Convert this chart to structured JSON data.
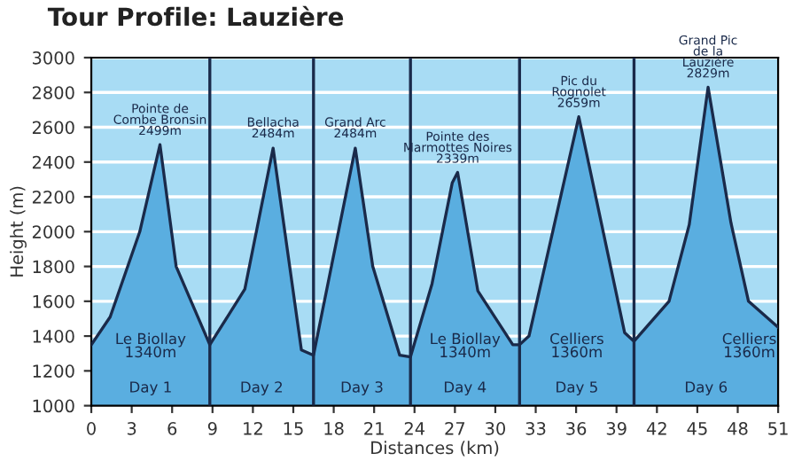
{
  "chart_data": {
    "type": "area",
    "title": "Tour Profile: Lauzière",
    "xlabel": "Distances (km)",
    "ylabel": "Height (m)",
    "x": [
      0,
      1.4,
      3.6,
      5.1,
      6.3,
      8.8,
      11.4,
      13.5,
      15.6,
      16.5,
      19.6,
      20.9,
      22.9,
      23.7,
      25.3,
      26.8,
      27.2,
      28.7,
      31.3,
      31.8,
      32.5,
      36.2,
      39.6,
      40.3,
      42.9,
      44.4,
      45.8,
      47.5,
      48.8,
      51
    ],
    "series": [
      {
        "color": "#5aaee0",
        "values": [
          1350,
          1510,
          2000,
          2500,
          1800,
          1350,
          1670,
          2480,
          1320,
          1290,
          2480,
          1800,
          1290,
          1280,
          1700,
          2280,
          2340,
          1660,
          1350,
          1350,
          1400,
          2660,
          1420,
          1370,
          1600,
          2040,
          2830,
          2050,
          1600,
          1450
        ]
      }
    ],
    "xlim": [
      0,
      51
    ],
    "ylim": [
      1000,
      3000
    ],
    "xticks": [
      0,
      3,
      6,
      9,
      12,
      15,
      18,
      21,
      24,
      27,
      30,
      33,
      36,
      39,
      42,
      45,
      48,
      51
    ],
    "yticks": [
      1000,
      1200,
      1400,
      1600,
      1800,
      2000,
      2200,
      2400,
      2600,
      2800,
      3000
    ],
    "grid": "y",
    "legend": false,
    "ref_lines": [
      {
        "axis": "x",
        "value": 8.8,
        "color": "#1a2a4a"
      },
      {
        "axis": "x",
        "value": 16.5,
        "color": "#1a2a4a"
      },
      {
        "axis": "x",
        "value": 23.7,
        "color": "#1a2a4a"
      },
      {
        "axis": "x",
        "value": 31.8,
        "color": "#1a2a4a"
      },
      {
        "axis": "x",
        "value": 40.3,
        "color": "#1a2a4a"
      }
    ],
    "annotations": [
      {
        "text": "Pointe de\nCombe Bronsin\n2499m",
        "x": 5.1,
        "y": 2499
      },
      {
        "text": "Bellacha\n2484m",
        "x": 13.5,
        "y": 2484
      },
      {
        "text": "Grand Arc\n2484m",
        "x": 19.6,
        "y": 2484
      },
      {
        "text": "Pointe des\nMarmottes Noires\n2339m",
        "x": 27.2,
        "y": 2339
      },
      {
        "text": "Pic du\nRognolet\n2659m",
        "x": 36.2,
        "y": 2659
      },
      {
        "text": "Grand Pic\nde la\nLauzière\n2829m",
        "x": 45.8,
        "y": 2829
      },
      "Le Biollay\n1340m",
      "Le Biollay\n1340m",
      "Celliers\n1360m",
      "Celliers\n1360m",
      "Day 1",
      "Day 2",
      "Day 3",
      "Day 4",
      "Day 5",
      "Day 6"
    ]
  }
}
